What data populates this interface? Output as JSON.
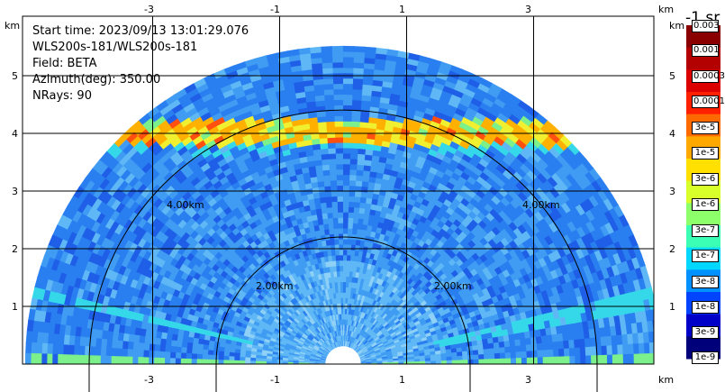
{
  "plot_info": {
    "start_time": "Start time: 2023/09/13 13:01:29.076",
    "instrument": "WLS200s-181/WLS200s-181",
    "field": "Field: BETA",
    "azimuth": "Azimuth(deg): 350.00",
    "nrays": "NRays: 90"
  },
  "axes": {
    "unit": "km",
    "x_ticks": [
      "-3",
      "-1",
      "1",
      "3"
    ],
    "y_ticks": [
      "5",
      "4",
      "3",
      "2",
      "1"
    ]
  },
  "range_rings": [
    "4.00km",
    "2.00km",
    "2.00km",
    "4.00km"
  ],
  "colorbar": {
    "title": "-1 sr",
    "labels": [
      "0.003",
      "0.001",
      "0.0003",
      "0.0001",
      "3e-5",
      "1e-5",
      "3e-6",
      "1e-6",
      "3e-7",
      "1e-7",
      "3e-8",
      "1e-8",
      "3e-9",
      "1e-9"
    ],
    "colors": [
      "#8a0000",
      "#b30000",
      "#dd0000",
      "#ff2000",
      "#ff6a00",
      "#ffa800",
      "#ffe000",
      "#d8ff2a",
      "#8cff6a",
      "#3cffb6",
      "#00d8ff",
      "#0090ff",
      "#0044ff",
      "#0000c8",
      "#00007a"
    ]
  }
}
